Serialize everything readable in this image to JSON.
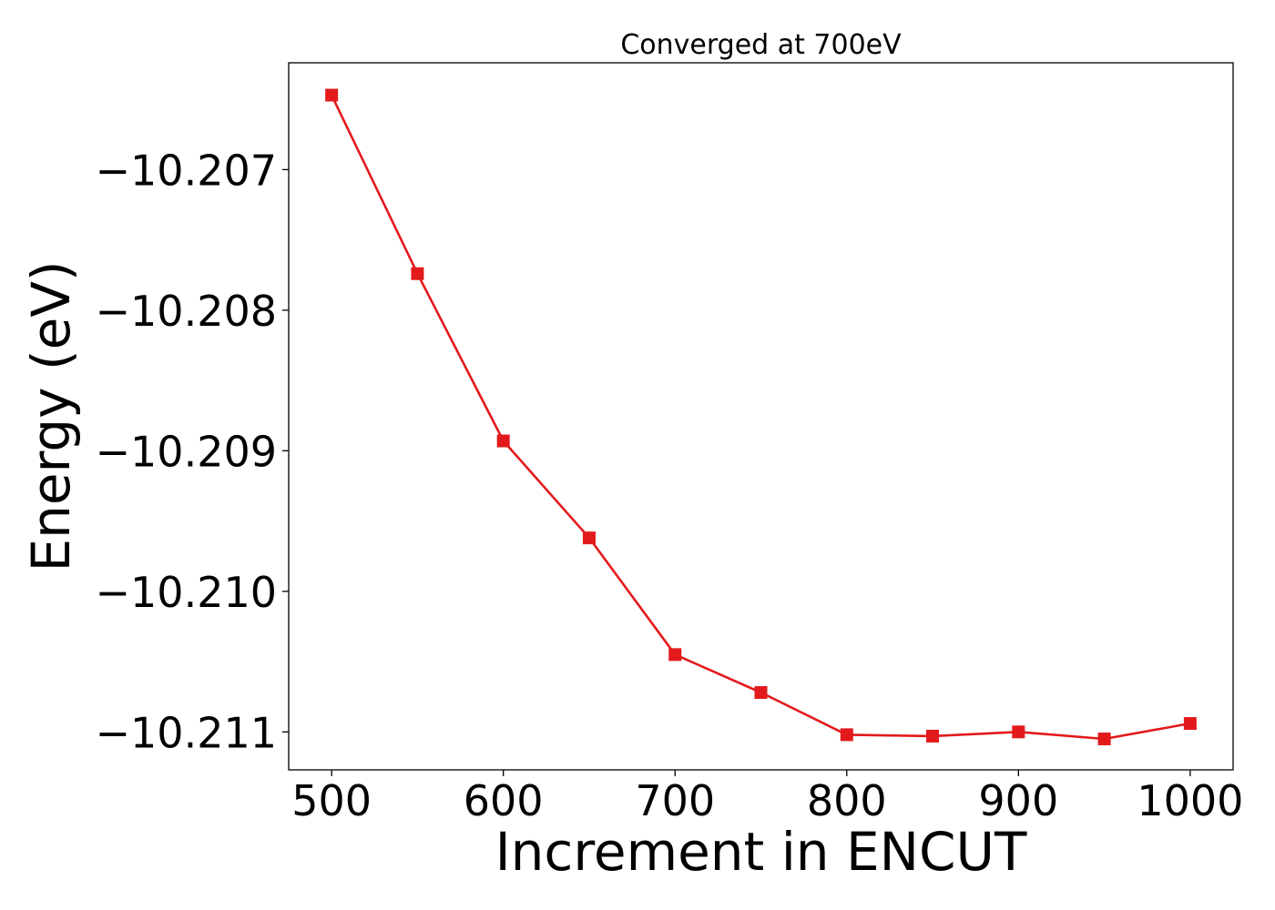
{
  "chart_data": {
    "type": "line",
    "title": "Converged at 700eV",
    "xlabel": "Increment in ENCUT",
    "ylabel": "Energy (eV)",
    "x": [
      500,
      550,
      600,
      650,
      700,
      750,
      800,
      850,
      900,
      950,
      1000
    ],
    "series": [
      {
        "values": [
          -10.20647,
          -10.20774,
          -10.20893,
          -10.20962,
          -10.21045,
          -10.21072,
          -10.21102,
          -10.21103,
          -10.211,
          -10.21105,
          -10.21094
        ],
        "color": "#e31a1c",
        "marker": "square"
      }
    ],
    "xticks": [
      500,
      600,
      700,
      800,
      900,
      1000
    ],
    "xtick_labels": [
      "500",
      "600",
      "700",
      "800",
      "900",
      "1000"
    ],
    "yticks": [
      -10.207,
      -10.208,
      -10.209,
      -10.21,
      -10.211
    ],
    "ytick_labels": [
      "−10.207",
      "−10.208",
      "−10.209",
      "−10.210",
      "−10.211"
    ],
    "xlim": [
      475,
      1025
    ],
    "ylim": [
      -10.21127,
      -10.20624
    ],
    "grid": false,
    "legend": false
  }
}
